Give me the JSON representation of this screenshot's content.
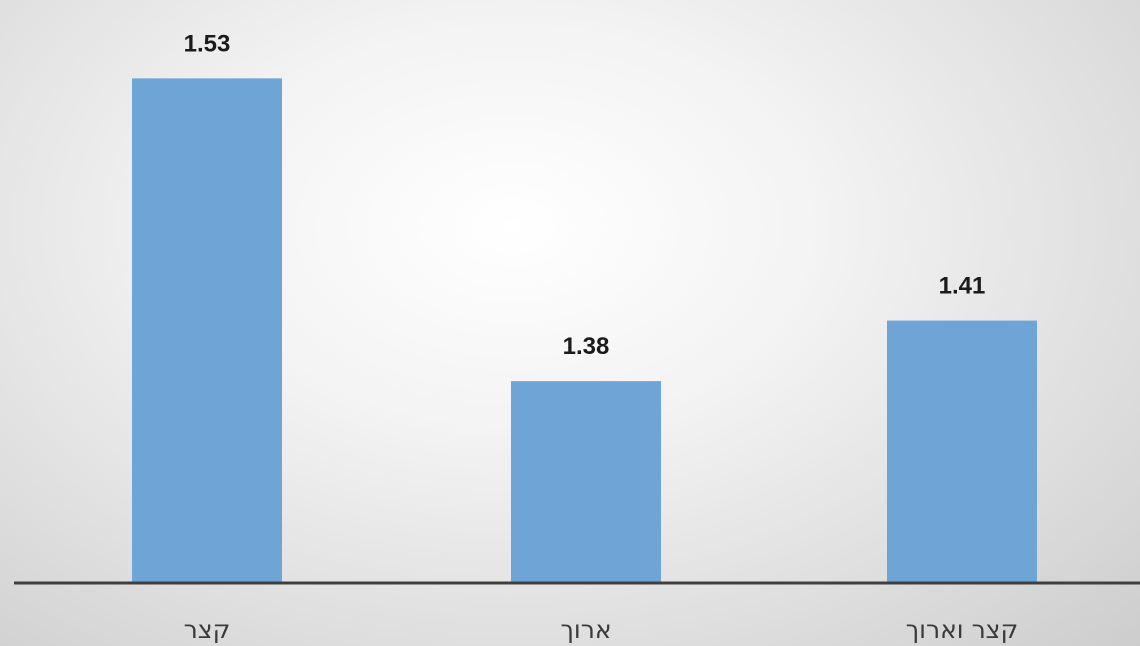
{
  "chart_data": {
    "type": "bar",
    "categories": [
      "קצר",
      "ארוך",
      "קצר וארוך"
    ],
    "values": [
      1.53,
      1.38,
      1.41
    ],
    "data_labels": [
      "1.53",
      "1.38",
      "1.41"
    ],
    "title": "",
    "xlabel": "",
    "ylabel": "",
    "ylim": [
      1.28,
      1.55
    ],
    "grid": false,
    "legend": "none",
    "colors": {
      "bar": "#6fa5d6",
      "axis": "#3f3f3f",
      "label": "#1b1b1b"
    }
  }
}
